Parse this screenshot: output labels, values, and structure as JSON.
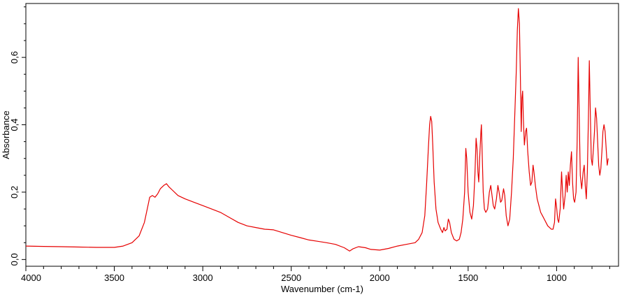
{
  "chart_data": {
    "type": "line",
    "title": "",
    "xlabel": "Wavenumber (cm-1)",
    "ylabel": "Absorbance",
    "xlim": [
      4000,
      650
    ],
    "ylim": [
      -0.02,
      0.76
    ],
    "x_reversed": true,
    "grid": false,
    "x_ticks": [
      4000,
      3500,
      3000,
      2500,
      2000,
      1500,
      1000
    ],
    "x_tick_labels": [
      "4000",
      "3500",
      "3000",
      "2500",
      "2000",
      "1500",
      "1000"
    ],
    "y_ticks": [
      0.0,
      0.2,
      0.4,
      0.6
    ],
    "y_tick_labels": [
      "0,0",
      "0,2",
      "0,4",
      "0,6"
    ],
    "series": [
      {
        "color": "#e60000",
        "points": [
          [
            4000,
            0.04
          ],
          [
            3900,
            0.039
          ],
          [
            3800,
            0.038
          ],
          [
            3700,
            0.037
          ],
          [
            3600,
            0.036
          ],
          [
            3500,
            0.036
          ],
          [
            3450,
            0.04
          ],
          [
            3400,
            0.05
          ],
          [
            3360,
            0.07
          ],
          [
            3330,
            0.11
          ],
          [
            3310,
            0.16
          ],
          [
            3300,
            0.185
          ],
          [
            3285,
            0.19
          ],
          [
            3270,
            0.185
          ],
          [
            3255,
            0.195
          ],
          [
            3240,
            0.21
          ],
          [
            3220,
            0.22
          ],
          [
            3205,
            0.225
          ],
          [
            3190,
            0.215
          ],
          [
            3170,
            0.205
          ],
          [
            3140,
            0.19
          ],
          [
            3100,
            0.18
          ],
          [
            3050,
            0.17
          ],
          [
            3000,
            0.16
          ],
          [
            2950,
            0.15
          ],
          [
            2900,
            0.14
          ],
          [
            2850,
            0.125
          ],
          [
            2800,
            0.11
          ],
          [
            2750,
            0.1
          ],
          [
            2700,
            0.095
          ],
          [
            2650,
            0.09
          ],
          [
            2600,
            0.088
          ],
          [
            2550,
            0.08
          ],
          [
            2500,
            0.072
          ],
          [
            2450,
            0.065
          ],
          [
            2400,
            0.058
          ],
          [
            2350,
            0.054
          ],
          [
            2300,
            0.05
          ],
          [
            2250,
            0.045
          ],
          [
            2200,
            0.035
          ],
          [
            2170,
            0.025
          ],
          [
            2150,
            0.032
          ],
          [
            2120,
            0.038
          ],
          [
            2080,
            0.035
          ],
          [
            2050,
            0.03
          ],
          [
            2000,
            0.028
          ],
          [
            1950,
            0.033
          ],
          [
            1900,
            0.04
          ],
          [
            1850,
            0.045
          ],
          [
            1800,
            0.05
          ],
          [
            1780,
            0.06
          ],
          [
            1760,
            0.08
          ],
          [
            1745,
            0.13
          ],
          [
            1735,
            0.22
          ],
          [
            1725,
            0.33
          ],
          [
            1718,
            0.4
          ],
          [
            1712,
            0.425
          ],
          [
            1706,
            0.41
          ],
          [
            1700,
            0.34
          ],
          [
            1692,
            0.23
          ],
          [
            1682,
            0.15
          ],
          [
            1670,
            0.11
          ],
          [
            1655,
            0.09
          ],
          [
            1645,
            0.08
          ],
          [
            1637,
            0.095
          ],
          [
            1630,
            0.085
          ],
          [
            1620,
            0.09
          ],
          [
            1612,
            0.12
          ],
          [
            1605,
            0.11
          ],
          [
            1595,
            0.08
          ],
          [
            1580,
            0.06
          ],
          [
            1565,
            0.055
          ],
          [
            1550,
            0.06
          ],
          [
            1540,
            0.08
          ],
          [
            1530,
            0.12
          ],
          [
            1520,
            0.2
          ],
          [
            1513,
            0.33
          ],
          [
            1508,
            0.3
          ],
          [
            1500,
            0.2
          ],
          [
            1490,
            0.14
          ],
          [
            1480,
            0.12
          ],
          [
            1470,
            0.16
          ],
          [
            1462,
            0.25
          ],
          [
            1455,
            0.36
          ],
          [
            1450,
            0.33
          ],
          [
            1445,
            0.26
          ],
          [
            1440,
            0.23
          ],
          [
            1435,
            0.3
          ],
          [
            1428,
            0.38
          ],
          [
            1425,
            0.4
          ],
          [
            1420,
            0.3
          ],
          [
            1415,
            0.2
          ],
          [
            1408,
            0.15
          ],
          [
            1400,
            0.14
          ],
          [
            1390,
            0.15
          ],
          [
            1380,
            0.2
          ],
          [
            1372,
            0.22
          ],
          [
            1365,
            0.19
          ],
          [
            1358,
            0.16
          ],
          [
            1350,
            0.15
          ],
          [
            1340,
            0.18
          ],
          [
            1332,
            0.22
          ],
          [
            1325,
            0.2
          ],
          [
            1317,
            0.17
          ],
          [
            1310,
            0.175
          ],
          [
            1300,
            0.21
          ],
          [
            1293,
            0.19
          ],
          [
            1285,
            0.13
          ],
          [
            1275,
            0.1
          ],
          [
            1265,
            0.12
          ],
          [
            1255,
            0.2
          ],
          [
            1245,
            0.3
          ],
          [
            1235,
            0.45
          ],
          [
            1228,
            0.56
          ],
          [
            1222,
            0.68
          ],
          [
            1216,
            0.745
          ],
          [
            1210,
            0.7
          ],
          [
            1205,
            0.55
          ],
          [
            1200,
            0.38
          ],
          [
            1196,
            0.48
          ],
          [
            1192,
            0.5
          ],
          [
            1188,
            0.42
          ],
          [
            1182,
            0.34
          ],
          [
            1175,
            0.38
          ],
          [
            1170,
            0.39
          ],
          [
            1163,
            0.32
          ],
          [
            1155,
            0.26
          ],
          [
            1147,
            0.22
          ],
          [
            1140,
            0.23
          ],
          [
            1133,
            0.28
          ],
          [
            1128,
            0.26
          ],
          [
            1120,
            0.22
          ],
          [
            1110,
            0.18
          ],
          [
            1100,
            0.16
          ],
          [
            1090,
            0.14
          ],
          [
            1080,
            0.13
          ],
          [
            1070,
            0.12
          ],
          [
            1060,
            0.11
          ],
          [
            1050,
            0.1
          ],
          [
            1040,
            0.095
          ],
          [
            1030,
            0.09
          ],
          [
            1020,
            0.09
          ],
          [
            1012,
            0.11
          ],
          [
            1006,
            0.18
          ],
          [
            1000,
            0.155
          ],
          [
            994,
            0.12
          ],
          [
            988,
            0.11
          ],
          [
            980,
            0.15
          ],
          [
            972,
            0.26
          ],
          [
            966,
            0.2
          ],
          [
            960,
            0.15
          ],
          [
            952,
            0.19
          ],
          [
            946,
            0.25
          ],
          [
            940,
            0.2
          ],
          [
            934,
            0.26
          ],
          [
            928,
            0.22
          ],
          [
            922,
            0.28
          ],
          [
            916,
            0.32
          ],
          [
            910,
            0.23
          ],
          [
            904,
            0.18
          ],
          [
            898,
            0.17
          ],
          [
            890,
            0.2
          ],
          [
            884,
            0.35
          ],
          [
            878,
            0.6
          ],
          [
            872,
            0.42
          ],
          [
            866,
            0.25
          ],
          [
            858,
            0.21
          ],
          [
            850,
            0.26
          ],
          [
            844,
            0.28
          ],
          [
            838,
            0.22
          ],
          [
            832,
            0.18
          ],
          [
            826,
            0.26
          ],
          [
            820,
            0.43
          ],
          [
            815,
            0.59
          ],
          [
            810,
            0.45
          ],
          [
            804,
            0.3
          ],
          [
            798,
            0.28
          ],
          [
            792,
            0.33
          ],
          [
            786,
            0.38
          ],
          [
            780,
            0.45
          ],
          [
            774,
            0.42
          ],
          [
            768,
            0.35
          ],
          [
            762,
            0.28
          ],
          [
            756,
            0.25
          ],
          [
            750,
            0.27
          ],
          [
            744,
            0.32
          ],
          [
            738,
            0.38
          ],
          [
            732,
            0.4
          ],
          [
            726,
            0.38
          ],
          [
            720,
            0.33
          ],
          [
            714,
            0.28
          ],
          [
            708,
            0.3
          ]
        ]
      }
    ]
  }
}
